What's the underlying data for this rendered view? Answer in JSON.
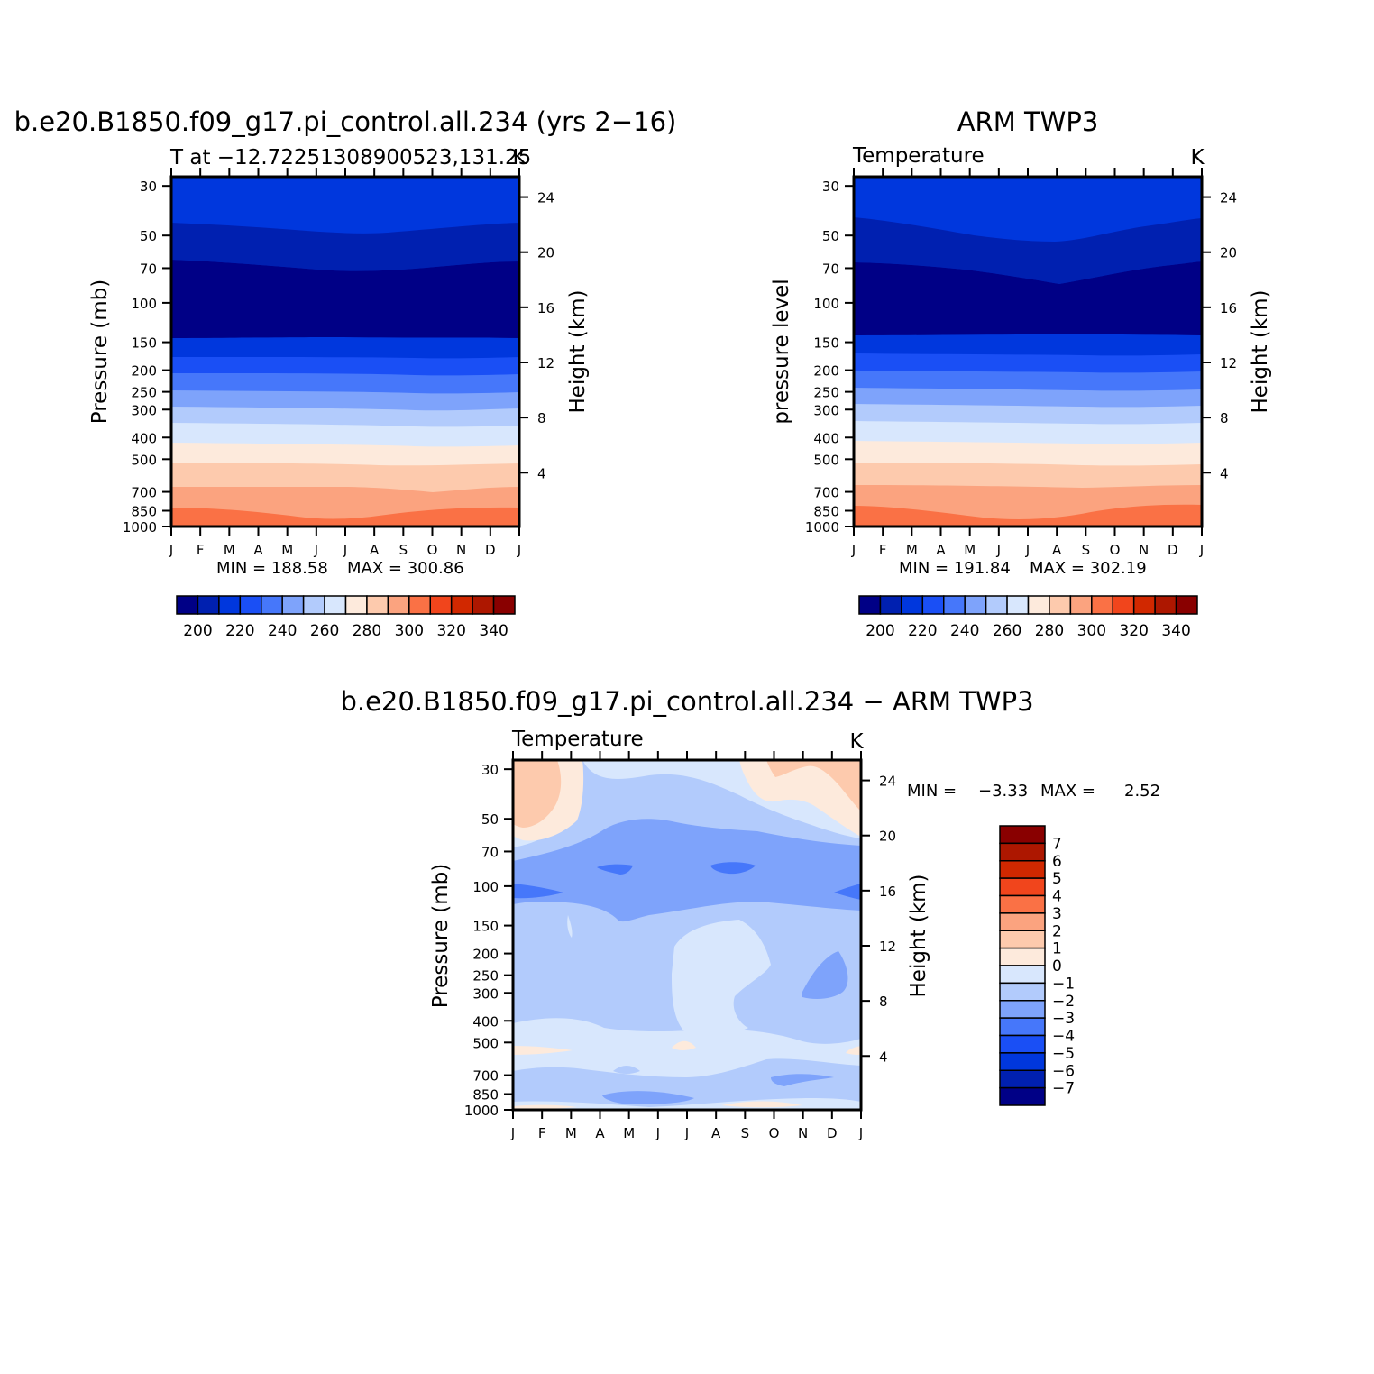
{
  "chart_data": [
    {
      "type": "heatmap",
      "title": "b.e20.B1850.f09_g17.pi_control.all.234 (yrs 2−16)",
      "left_string": "T at −12.7225130890052​3,131.25",
      "right_string": "K",
      "ylabel": "Pressure (mb)",
      "ylabel_right": "Height (km)",
      "x_ticks": [
        "J",
        "F",
        "M",
        "A",
        "M",
        "J",
        "J",
        "A",
        "S",
        "O",
        "N",
        "D",
        "J"
      ],
      "y_ticks": [
        30,
        50,
        70,
        100,
        150,
        200,
        250,
        300,
        400,
        500,
        700,
        850,
        1000
      ],
      "right_ticks": [
        4,
        8,
        12,
        16,
        20,
        24
      ],
      "ylim": [
        30,
        1000
      ],
      "min_label": "MIN = 188.58",
      "max_label": "MAX = 300.86",
      "min": 188.58,
      "max": 300.86,
      "colorbar_labels": [
        "200",
        "220",
        "240",
        "260",
        "280",
        "300",
        "320",
        "340"
      ],
      "levels": [
        200,
        210,
        220,
        230,
        240,
        250,
        260,
        270,
        280,
        290,
        300,
        310,
        320,
        330,
        340
      ],
      "boundaries_pressure": {
        "bands": [
          {
            "label": "<200",
            "p": [
              0,
              0,
              0,
              0,
              0,
              0,
              0,
              0,
              0,
              0,
              0,
              0,
              0
            ]
          },
          {
            "label": "200-210",
            "p": [
              60,
              62,
              64,
              66,
              67,
              68,
              69,
              69,
              68,
              67,
              65,
              63,
              60
            ]
          },
          {
            "label": "210-220",
            "p": [
              138,
              137,
              137,
              136,
              135,
              135,
              134,
              135,
              136,
              137,
              138,
              138,
              138
            ]
          },
          {
            "label": "220-230",
            "p": [
              172,
              172,
              173,
              174,
              174,
              174,
              173,
              173,
              174,
              175,
              174,
              173,
              172
            ]
          },
          {
            "label": "230-240",
            "p": [
              215,
              215,
              216,
              217,
              217,
              217,
              217,
              217,
              218,
              219,
              218,
              216,
              215
            ]
          },
          {
            "label": "240-250",
            "p": [
              262,
              262,
              263,
              264,
              264,
              264,
              263,
              263,
              264,
              265,
              264,
              263,
              262
            ]
          },
          {
            "label": "250-260",
            "p": [
              318,
              318,
              320,
              322,
              323,
              323,
              322,
              322,
              323,
              325,
              324,
              321,
              318
            ]
          },
          {
            "label": "260-270",
            "p": [
              395,
              395,
              397,
              400,
              401,
              401,
              400,
              400,
              402,
              404,
              403,
              399,
              395
            ]
          },
          {
            "label": "270-280",
            "p": [
              497,
              497,
              500,
              504,
              506,
              507,
              506,
              505,
              508,
              512,
              509,
              502,
              497
            ]
          }
        ]
      }
    },
    {
      "type": "heatmap",
      "title": "ARM  TWP3",
      "left_string": "Temperature",
      "right_string": "K",
      "ylabel": "pressure level",
      "ylabel_right": "Height (km)",
      "x_ticks": [
        "J",
        "F",
        "M",
        "A",
        "M",
        "J",
        "J",
        "A",
        "S",
        "O",
        "N",
        "D",
        "J"
      ],
      "y_ticks": [
        30,
        50,
        70,
        100,
        150,
        200,
        250,
        300,
        400,
        500,
        700,
        850,
        1000
      ],
      "right_ticks": [
        4,
        8,
        12,
        16,
        20,
        24
      ],
      "ylim": [
        30,
        1000
      ],
      "min_label": "MIN = 191.84",
      "max_label": "MAX = 302.19",
      "min": 191.84,
      "max": 302.19,
      "colorbar_labels": [
        "200",
        "220",
        "240",
        "260",
        "280",
        "300",
        "320",
        "340"
      ]
    },
    {
      "type": "heatmap",
      "title": "b.e20.B1850.f09_g17.pi_control.all.234 − ARM  TWP3",
      "left_string": "Temperature",
      "right_string": "K",
      "ylabel": "Pressure (mb)",
      "ylabel_right": "Height (km)",
      "x_ticks": [
        "J",
        "F",
        "M",
        "A",
        "M",
        "J",
        "J",
        "A",
        "S",
        "O",
        "N",
        "D",
        "J"
      ],
      "y_ticks": [
        30,
        50,
        70,
        100,
        150,
        200,
        250,
        300,
        400,
        500,
        700,
        850,
        1000
      ],
      "right_ticks": [
        4,
        8,
        12,
        16,
        20,
        24
      ],
      "ylim": [
        30,
        1000
      ],
      "min_label": "MIN =",
      "min_value": "−3.33",
      "max_label": "MAX =",
      "max_value": "2.52",
      "min": -3.33,
      "max": 2.52,
      "colorbar_labels": [
        "7",
        "6",
        "5",
        "4",
        "3",
        "2",
        "1",
        "0",
        "−1",
        "−2",
        "−3",
        "−4",
        "−5",
        "−6",
        "−7"
      ]
    }
  ],
  "colors": {
    "t_palette": [
      "#000086",
      "#0020b0",
      "#0037dd",
      "#1a4ff5",
      "#4677fa",
      "#7ea3fb",
      "#b2cbfc",
      "#d8e7fd",
      "#fdeadc",
      "#fdcaad",
      "#fba37f",
      "#fa7145",
      "#f1451c",
      "#d12800",
      "#ad1700",
      "#890000"
    ],
    "diff_palette_top_to_bottom": [
      "#890000",
      "#ad1700",
      "#d12800",
      "#f1451c",
      "#fa7145",
      "#fba37f",
      "#fdcaad",
      "#fdeadc",
      "#d8e7fd",
      "#b2cbfc",
      "#7ea3fb",
      "#4677fa",
      "#1a4ff5",
      "#0037dd",
      "#0020b0",
      "#000086"
    ]
  }
}
